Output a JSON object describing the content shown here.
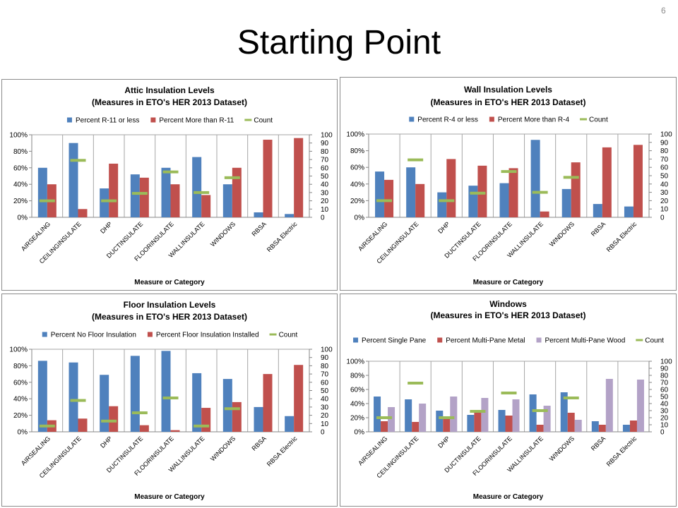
{
  "slide": {
    "title": "Starting Point",
    "page_number": "6"
  },
  "chart_data": [
    {
      "type": "bar",
      "title": "Attic Insulation Levels",
      "subtitle": "(Measures in ETO's HER 2013 Dataset)",
      "xlabel": "Measure or Category",
      "categories": [
        "AIRSEALING",
        "CEILINGINSULATE",
        "DHP",
        "DUCTINSULATE",
        "FLOORINSULATE",
        "WALLINSULATE",
        "WINDOWS",
        "RBSA",
        "RBSA Electric"
      ],
      "ylim": [
        0,
        100
      ],
      "ytick_labels": [
        "0%",
        "20%",
        "40%",
        "60%",
        "80%",
        "100%"
      ],
      "y2lim": [
        0,
        100
      ],
      "y2tick_labels": [
        "0",
        "10",
        "20",
        "30",
        "40",
        "50",
        "60",
        "70",
        "80",
        "90",
        "100"
      ],
      "grid": "vertical",
      "legend": "top",
      "series": [
        {
          "name": "Percent R-11 or less",
          "kind": "bar",
          "axis": "left",
          "color": "#4F81BD",
          "values": [
            60,
            90,
            35,
            52,
            60,
            73,
            40,
            6,
            4
          ]
        },
        {
          "name": "Percent More than R-11",
          "kind": "bar",
          "axis": "left",
          "color": "#C0504D",
          "values": [
            40,
            10,
            65,
            48,
            40,
            27,
            60,
            94,
            96
          ]
        },
        {
          "name": "Count",
          "kind": "marker",
          "axis": "right",
          "color": "#9BBB59",
          "values": [
            20,
            69,
            20,
            29,
            55,
            30,
            48,
            null,
            null
          ]
        }
      ]
    },
    {
      "type": "bar",
      "title": "Wall Insulation Levels",
      "subtitle": "(Measures in ETO's HER 2013 Dataset)",
      "xlabel": "Measure or Category",
      "categories": [
        "AIRSEALING",
        "CEILINGINSULATE",
        "DHP",
        "DUCTINSULATE",
        "FLOORINSULATE",
        "WALLINSULATE",
        "WINDOWS",
        "RBSA",
        "RBSA Electric"
      ],
      "ylim": [
        0,
        100
      ],
      "ytick_labels": [
        "0%",
        "20%",
        "40%",
        "60%",
        "80%",
        "100%"
      ],
      "y2lim": [
        0,
        100
      ],
      "y2tick_labels": [
        "0",
        "10",
        "20",
        "30",
        "40",
        "50",
        "60",
        "70",
        "80",
        "90",
        "100"
      ],
      "grid": "vertical",
      "legend": "top",
      "series": [
        {
          "name": "Percent R-4 or less",
          "kind": "bar",
          "axis": "left",
          "color": "#4F81BD",
          "values": [
            55,
            60,
            30,
            38,
            41,
            93,
            34,
            16,
            13
          ]
        },
        {
          "name": "Percent More than R-4",
          "kind": "bar",
          "axis": "left",
          "color": "#C0504D",
          "values": [
            45,
            40,
            70,
            62,
            59,
            7,
            66,
            84,
            87
          ]
        },
        {
          "name": "Count",
          "kind": "marker",
          "axis": "right",
          "color": "#9BBB59",
          "values": [
            20,
            69,
            20,
            29,
            55,
            30,
            48,
            null,
            null
          ]
        }
      ]
    },
    {
      "type": "bar",
      "title": "Floor Insulation Levels",
      "subtitle": "(Measures in ETO's HER 2013 Dataset)",
      "xlabel": "Measure or Category",
      "categories": [
        "AIRSEALING",
        "CEILINGINSULATE",
        "DHP",
        "DUCTINSULATE",
        "FLOORINSULATE",
        "WALLINSULATE",
        "WINDOWS",
        "RBSA",
        "RBSA Electric"
      ],
      "ylim": [
        0,
        100
      ],
      "ytick_labels": [
        "0%",
        "20%",
        "40%",
        "60%",
        "80%",
        "100%"
      ],
      "y2lim": [
        0,
        100
      ],
      "y2tick_labels": [
        "0",
        "10",
        "20",
        "30",
        "40",
        "50",
        "60",
        "70",
        "80",
        "90",
        "100"
      ],
      "grid": "vertical",
      "legend": "top",
      "series": [
        {
          "name": "Percent No Floor Insulation",
          "kind": "bar",
          "axis": "left",
          "color": "#4F81BD",
          "values": [
            86,
            84,
            69,
            92,
            98,
            71,
            64,
            30,
            19
          ]
        },
        {
          "name": "Percent Floor Insulation Installed",
          "kind": "bar",
          "axis": "left",
          "color": "#C0504D",
          "values": [
            14,
            16,
            31,
            8,
            2,
            29,
            36,
            70,
            81
          ]
        },
        {
          "name": "Count",
          "kind": "marker",
          "axis": "right",
          "color": "#9BBB59",
          "values": [
            7,
            38,
            13,
            23,
            41,
            7,
            28,
            null,
            null
          ]
        }
      ]
    },
    {
      "type": "bar",
      "title": "Windows",
      "subtitle": "(Measures in ETO's HER 2013 Dataset)",
      "xlabel": "Measure or Category",
      "categories": [
        "AIRSEALING",
        "CEILINGINSULATE",
        "DHP",
        "DUCTINSULATE",
        "FLOORINSULATE",
        "WALLINSULATE",
        "WINDOWS",
        "RBSA",
        "RBSA Electric"
      ],
      "ylim": [
        0,
        100
      ],
      "ytick_labels": [
        "0%",
        "20%",
        "40%",
        "60%",
        "80%",
        "100%"
      ],
      "y2lim": [
        0,
        100
      ],
      "y2tick_labels": [
        "0",
        "10",
        "20",
        "30",
        "40",
        "50",
        "60",
        "70",
        "80",
        "90",
        "100"
      ],
      "grid": "vertical",
      "legend": "top",
      "series": [
        {
          "name": "Percent Single Pane",
          "kind": "bar",
          "axis": "left",
          "color": "#4F81BD",
          "values": [
            50,
            46,
            30,
            24,
            31,
            53,
            56,
            15,
            10
          ]
        },
        {
          "name": "Percent Multi-Pane Metal",
          "kind": "bar",
          "axis": "left",
          "color": "#C0504D",
          "values": [
            15,
            14,
            20,
            28,
            23,
            10,
            27,
            10,
            16
          ]
        },
        {
          "name": "Percent Multi-Pane Wood",
          "kind": "bar",
          "axis": "left",
          "color": "#B3A2C7",
          "values": [
            35,
            40,
            50,
            48,
            46,
            37,
            17,
            75,
            74
          ]
        },
        {
          "name": "Count",
          "kind": "marker",
          "axis": "right",
          "color": "#9BBB59",
          "values": [
            20,
            69,
            20,
            29,
            55,
            30,
            48,
            null,
            null
          ]
        }
      ]
    }
  ]
}
